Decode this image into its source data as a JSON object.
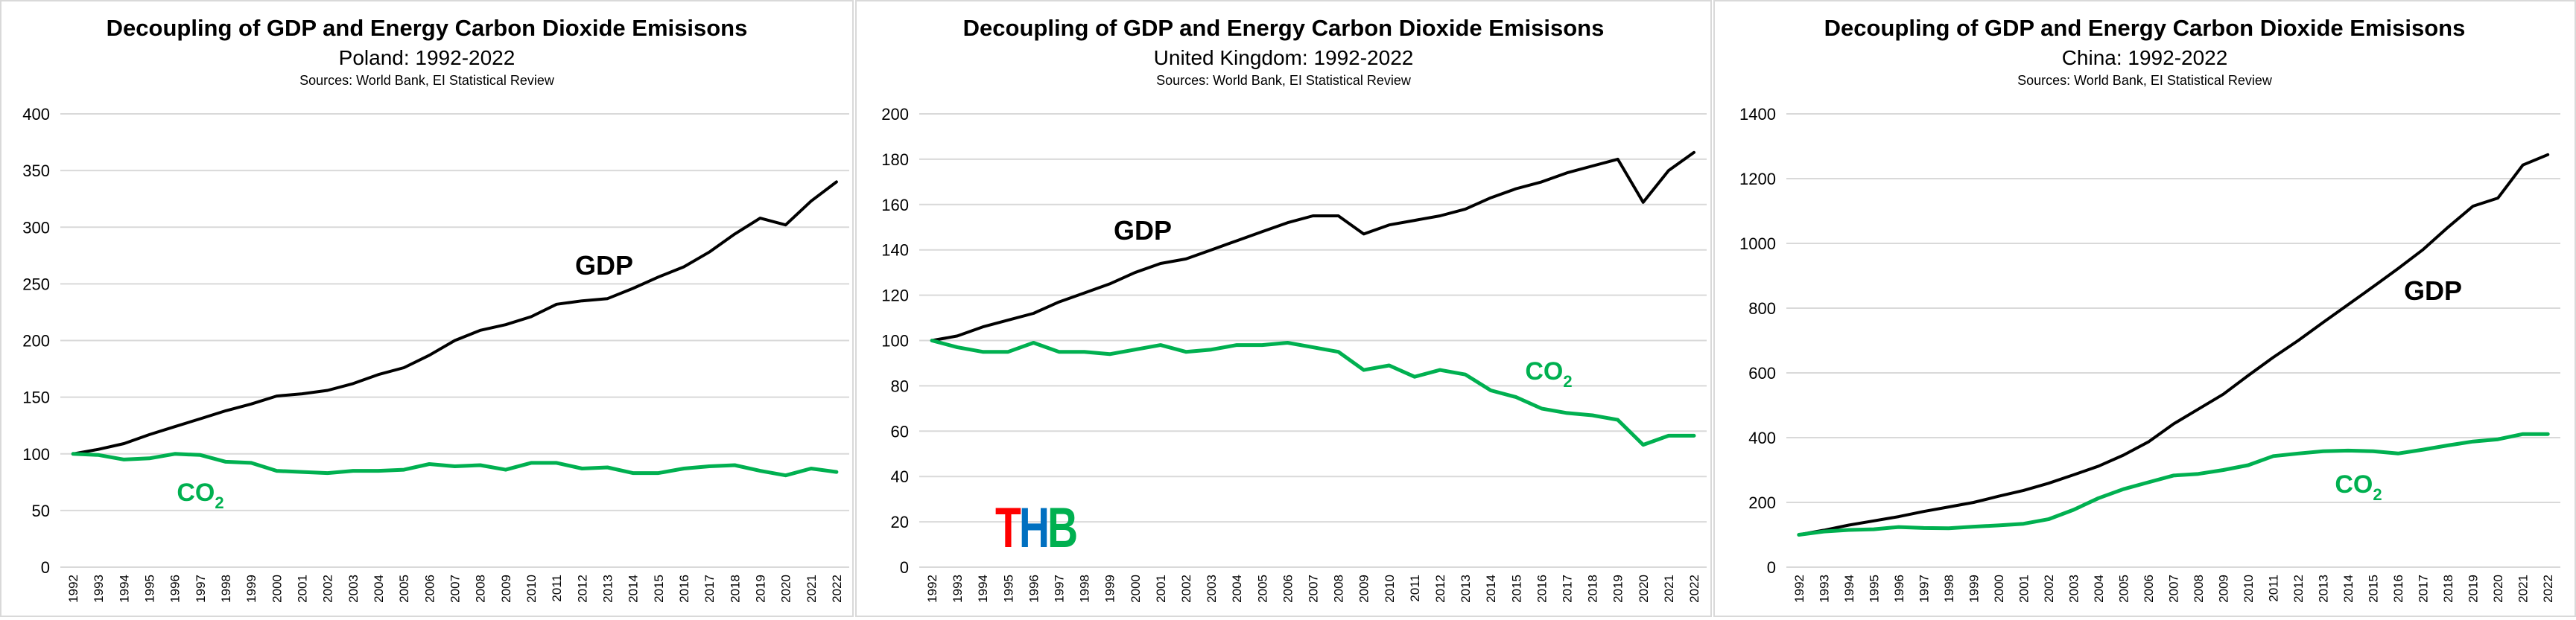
{
  "chart_data": [
    {
      "type": "line",
      "title": "Decoupling of GDP and Energy Carbon Dioxide Emisisons",
      "subtitle": "Poland: 1992-2022",
      "sources": "Sources: World Bank, EI Statistical Review",
      "xlabel": "",
      "ylabel": "",
      "ylim": [
        0,
        400
      ],
      "yticks": [
        "0",
        "50",
        "100",
        "150",
        "200",
        "250",
        "300",
        "350",
        "400"
      ],
      "grid": true,
      "x": [
        "1992",
        "1993",
        "1994",
        "1995",
        "1996",
        "1997",
        "1998",
        "1999",
        "2000",
        "2001",
        "2002",
        "2003",
        "2004",
        "2005",
        "2006",
        "2007",
        "2008",
        "2009",
        "2010",
        "2011",
        "2012",
        "2013",
        "2014",
        "2015",
        "2016",
        "2017",
        "2018",
        "2019",
        "2020",
        "2021",
        "2022"
      ],
      "series": [
        {
          "name": "GDP",
          "color": "#000000",
          "values": [
            100,
            104,
            109,
            117,
            124,
            131,
            138,
            144,
            151,
            153,
            156,
            162,
            170,
            176,
            187,
            200,
            209,
            214,
            221,
            232,
            235,
            237,
            246,
            256,
            265,
            278,
            294,
            308,
            302,
            323,
            340
          ]
        },
        {
          "name": "CO2",
          "color": "#00b050",
          "values": [
            100,
            99,
            95,
            96,
            100,
            99,
            93,
            92,
            85,
            84,
            83,
            85,
            85,
            86,
            91,
            89,
            90,
            86,
            92,
            92,
            87,
            88,
            83,
            83,
            87,
            89,
            90,
            85,
            81,
            87,
            84
          ]
        }
      ],
      "labels": {
        "gdp": "GDP",
        "co2_main": "CO",
        "co2_sub": "2"
      }
    },
    {
      "type": "line",
      "title": "Decoupling of GDP and Energy Carbon Dioxide Emisisons",
      "subtitle": "United Kingdom: 1992-2022",
      "sources": "Sources: World Bank, EI Statistical Review",
      "xlabel": "",
      "ylabel": "",
      "ylim": [
        0,
        200
      ],
      "yticks": [
        "0",
        "20",
        "40",
        "60",
        "80",
        "100",
        "120",
        "140",
        "160",
        "180",
        "200"
      ],
      "grid": true,
      "x": [
        "1992",
        "1993",
        "1994",
        "1995",
        "1996",
        "1997",
        "1998",
        "1999",
        "2000",
        "2001",
        "2002",
        "2003",
        "2004",
        "2005",
        "2006",
        "2007",
        "2008",
        "2009",
        "2010",
        "2011",
        "2012",
        "2013",
        "2014",
        "2015",
        "2016",
        "2017",
        "2018",
        "2019",
        "2020",
        "2021",
        "2022"
      ],
      "series": [
        {
          "name": "GDP",
          "color": "#000000",
          "values": [
            100,
            102,
            106,
            109,
            112,
            117,
            121,
            125,
            130,
            134,
            136,
            140,
            144,
            148,
            152,
            155,
            155,
            147,
            151,
            153,
            155,
            158,
            163,
            167,
            170,
            174,
            177,
            180,
            161,
            175,
            183
          ]
        },
        {
          "name": "CO2",
          "color": "#00b050",
          "values": [
            100,
            97,
            95,
            95,
            99,
            95,
            95,
            94,
            96,
            98,
            95,
            96,
            98,
            98,
            99,
            97,
            95,
            87,
            89,
            84,
            87,
            85,
            78,
            75,
            70,
            68,
            67,
            65,
            54,
            58,
            58
          ]
        }
      ],
      "labels": {
        "gdp": "GDP",
        "co2_main": "CO",
        "co2_sub": "2"
      },
      "logo": {
        "letters": [
          "T",
          "H",
          "B"
        ],
        "colors": [
          "#ff0000",
          "#0070c0",
          "#00b050"
        ]
      }
    },
    {
      "type": "line",
      "title": "Decoupling of GDP and Energy Carbon Dioxide Emisisons",
      "subtitle": "China: 1992-2022",
      "sources": "Sources: World Bank, EI Statistical Review",
      "xlabel": "",
      "ylabel": "",
      "ylim": [
        0,
        1400
      ],
      "yticks": [
        "0",
        "200",
        "400",
        "600",
        "800",
        "1000",
        "1200",
        "1400"
      ],
      "grid": true,
      "x": [
        "1992",
        "1993",
        "1994",
        "1995",
        "1996",
        "1997",
        "1998",
        "1999",
        "2000",
        "2001",
        "2002",
        "2003",
        "2004",
        "2005",
        "2006",
        "2007",
        "2008",
        "2009",
        "2010",
        "2011",
        "2012",
        "2013",
        "2014",
        "2015",
        "2016",
        "2017",
        "2018",
        "2019",
        "2020",
        "2021",
        "2022"
      ],
      "series": [
        {
          "name": "GDP",
          "color": "#000000",
          "values": [
            100,
            114,
            130,
            143,
            156,
            172,
            186,
            200,
            219,
            237,
            259,
            285,
            312,
            346,
            387,
            442,
            488,
            534,
            592,
            648,
            700,
            756,
            811,
            866,
            922,
            981,
            1050,
            1115,
            1140,
            1242,
            1274
          ]
        },
        {
          "name": "CO2",
          "color": "#00b050",
          "values": [
            100,
            110,
            115,
            117,
            124,
            121,
            120,
            125,
            129,
            134,
            148,
            177,
            213,
            241,
            262,
            283,
            288,
            300,
            315,
            343,
            351,
            358,
            360,
            358,
            351,
            363,
            376,
            388,
            395,
            411,
            411
          ]
        }
      ],
      "labels": {
        "gdp": "GDP",
        "co2_main": "CO",
        "co2_sub": "2"
      }
    }
  ]
}
